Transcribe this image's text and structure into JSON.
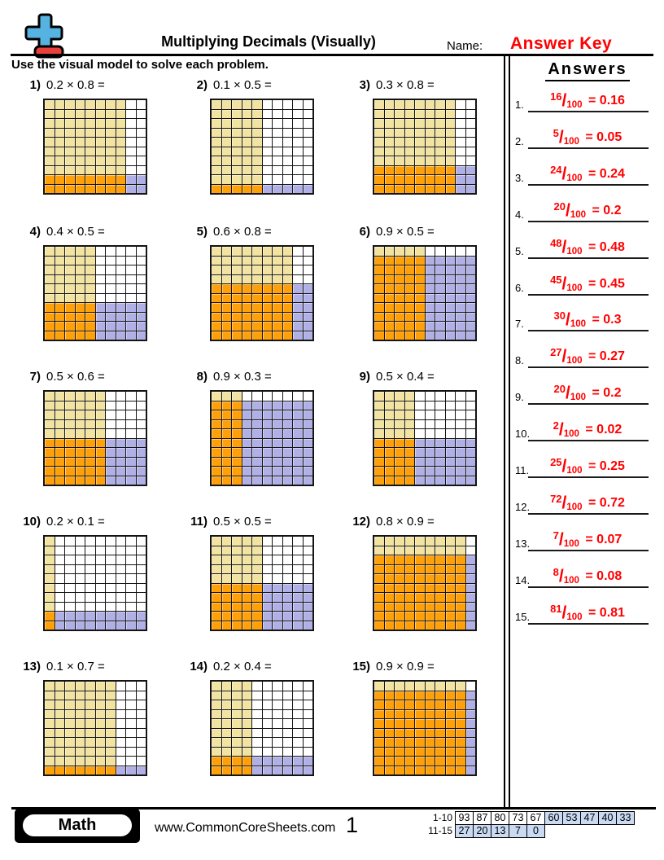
{
  "header": {
    "title": "Multiplying Decimals (Visually)",
    "name_label": "Name:",
    "answer_key": "Answer Key",
    "instruction": "Use the visual model to solve each problem."
  },
  "answers_panel": {
    "heading": "Answers",
    "denominator": "100",
    "items": [
      {
        "n": "1.",
        "numerator": "16",
        "equals": "= 0.16"
      },
      {
        "n": "2.",
        "numerator": "5",
        "equals": "= 0.05"
      },
      {
        "n": "3.",
        "numerator": "24",
        "equals": "= 0.24"
      },
      {
        "n": "4.",
        "numerator": "20",
        "equals": "= 0.2"
      },
      {
        "n": "5.",
        "numerator": "48",
        "equals": "= 0.48"
      },
      {
        "n": "6.",
        "numerator": "45",
        "equals": "= 0.45"
      },
      {
        "n": "7.",
        "numerator": "30",
        "equals": "= 0.3"
      },
      {
        "n": "8.",
        "numerator": "27",
        "equals": "= 0.27"
      },
      {
        "n": "9.",
        "numerator": "20",
        "equals": "= 0.2"
      },
      {
        "n": "10.",
        "numerator": "2",
        "equals": "= 0.02"
      },
      {
        "n": "11.",
        "numerator": "25",
        "equals": "= 0.25"
      },
      {
        "n": "12.",
        "numerator": "72",
        "equals": "= 0.72"
      },
      {
        "n": "13.",
        "numerator": "7",
        "equals": "= 0.07"
      },
      {
        "n": "14.",
        "numerator": "8",
        "equals": "= 0.08"
      },
      {
        "n": "15.",
        "numerator": "81",
        "equals": "= 0.81"
      }
    ]
  },
  "problems": [
    {
      "label": "1)",
      "expr": "0.2 × 0.8 =",
      "rows_shaded": 2,
      "cols_shaded": 8
    },
    {
      "label": "2)",
      "expr": "0.1 × 0.5 =",
      "rows_shaded": 1,
      "cols_shaded": 5
    },
    {
      "label": "3)",
      "expr": "0.3 × 0.8 =",
      "rows_shaded": 3,
      "cols_shaded": 8
    },
    {
      "label": "4)",
      "expr": "0.4 × 0.5 =",
      "rows_shaded": 4,
      "cols_shaded": 5
    },
    {
      "label": "5)",
      "expr": "0.6 × 0.8 =",
      "rows_shaded": 6,
      "cols_shaded": 8
    },
    {
      "label": "6)",
      "expr": "0.9 × 0.5 =",
      "rows_shaded": 9,
      "cols_shaded": 5
    },
    {
      "label": "7)",
      "expr": "0.5 × 0.6 =",
      "rows_shaded": 5,
      "cols_shaded": 6
    },
    {
      "label": "8)",
      "expr": "0.9 × 0.3 =",
      "rows_shaded": 9,
      "cols_shaded": 3
    },
    {
      "label": "9)",
      "expr": "0.5 × 0.4 =",
      "rows_shaded": 5,
      "cols_shaded": 4
    },
    {
      "label": "10)",
      "expr": "0.2 × 0.1 =",
      "rows_shaded": 2,
      "cols_shaded": 1
    },
    {
      "label": "11)",
      "expr": "0.5 × 0.5 =",
      "rows_shaded": 5,
      "cols_shaded": 5
    },
    {
      "label": "12)",
      "expr": "0.8 × 0.9 =",
      "rows_shaded": 8,
      "cols_shaded": 9
    },
    {
      "label": "13)",
      "expr": "0.1 × 0.7 =",
      "rows_shaded": 1,
      "cols_shaded": 7
    },
    {
      "label": "14)",
      "expr": "0.2 × 0.4 =",
      "rows_shaded": 2,
      "cols_shaded": 4
    },
    {
      "label": "15)",
      "expr": "0.9 × 0.9 =",
      "rows_shaded": 9,
      "cols_shaded": 9
    }
  ],
  "colors": {
    "cell_yellow": "#F2E3A1",
    "cell_orange": "#FFA008",
    "cell_blue": "#B0B0E6",
    "cell_white": "#FFFFFF",
    "answer_red": "#FF0000",
    "score_highlight": "#C9DAF2",
    "logo_blue": "#56B3E1",
    "logo_red": "#E8413C"
  },
  "footer": {
    "brand": "Math",
    "website": "www.CommonCoreSheets.com",
    "page_number": "1",
    "score_rows": [
      {
        "label": "1-10",
        "cells": [
          {
            "v": "93",
            "hl": false
          },
          {
            "v": "87",
            "hl": false
          },
          {
            "v": "80",
            "hl": false
          },
          {
            "v": "73",
            "hl": false
          },
          {
            "v": "67",
            "hl": false
          },
          {
            "v": "60",
            "hl": true
          },
          {
            "v": "53",
            "hl": true
          },
          {
            "v": "47",
            "hl": true
          },
          {
            "v": "40",
            "hl": true
          },
          {
            "v": "33",
            "hl": true
          }
        ]
      },
      {
        "label": "11-15",
        "cells": [
          {
            "v": "27",
            "hl": true
          },
          {
            "v": "20",
            "hl": true
          },
          {
            "v": "13",
            "hl": true
          },
          {
            "v": "7",
            "hl": true
          },
          {
            "v": "0",
            "hl": true
          }
        ]
      }
    ]
  }
}
